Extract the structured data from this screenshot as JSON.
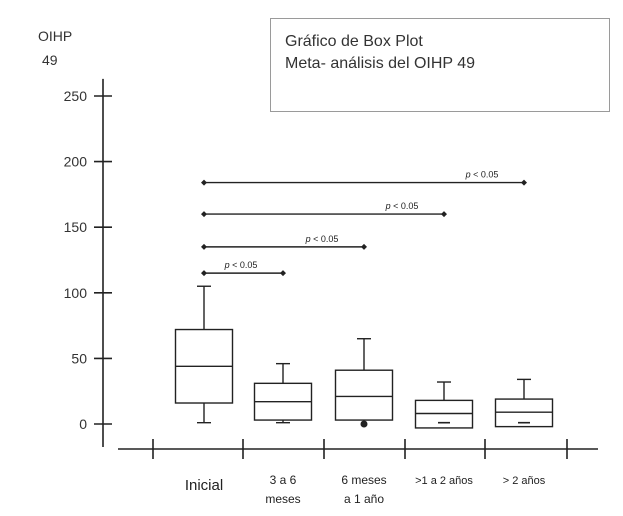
{
  "chart_data": {
    "type": "boxplot",
    "title": "Gráfico de Box Plot",
    "subtitle": "Meta- análisis del OIHP 49",
    "ylabel": "OIHP",
    "ylabel_line2": "49",
    "ylim": [
      -12,
      260
    ],
    "yticks": [
      0,
      50,
      100,
      150,
      200,
      250
    ],
    "grid": false,
    "categories": [
      [
        "Inicial"
      ],
      [
        "3 a 6",
        "meses"
      ],
      [
        "6 meses",
        "a 1 año"
      ],
      [
        ">1 a 2 años"
      ],
      [
        "> 2 años"
      ]
    ],
    "boxes": [
      {
        "whisker_low": 1,
        "q1": 16,
        "median": 44,
        "q3": 72,
        "whisker_high": 105,
        "outliers": []
      },
      {
        "whisker_low": 1,
        "q1": 3,
        "median": 17,
        "q3": 31,
        "whisker_high": 46,
        "outliers": []
      },
      {
        "whisker_low": 3,
        "q1": 3,
        "median": 21,
        "q3": 41,
        "whisker_high": 65,
        "outliers": [
          0
        ]
      },
      {
        "whisker_low": -3,
        "q1": -3,
        "median": 8,
        "q3": 18,
        "whisker_high": 32,
        "outliers": [
          1
        ]
      },
      {
        "whisker_low": -2,
        "q1": -2,
        "median": 9,
        "q3": 19,
        "whisker_high": 34,
        "outliers": [
          1
        ]
      }
    ],
    "comparisons": [
      {
        "from": 0,
        "to": 1,
        "y": 115,
        "label_italic": "p",
        "label_rest": " < 0.05"
      },
      {
        "from": 0,
        "to": 2,
        "y": 135,
        "label_italic": "p",
        "label_rest": " < 0.05"
      },
      {
        "from": 0,
        "to": 3,
        "y": 160,
        "label_italic": "p",
        "label_rest": " < 0.05"
      },
      {
        "from": 0,
        "to": 4,
        "y": 184,
        "label_italic": "p",
        "label_rest": " < 0.05"
      }
    ]
  }
}
